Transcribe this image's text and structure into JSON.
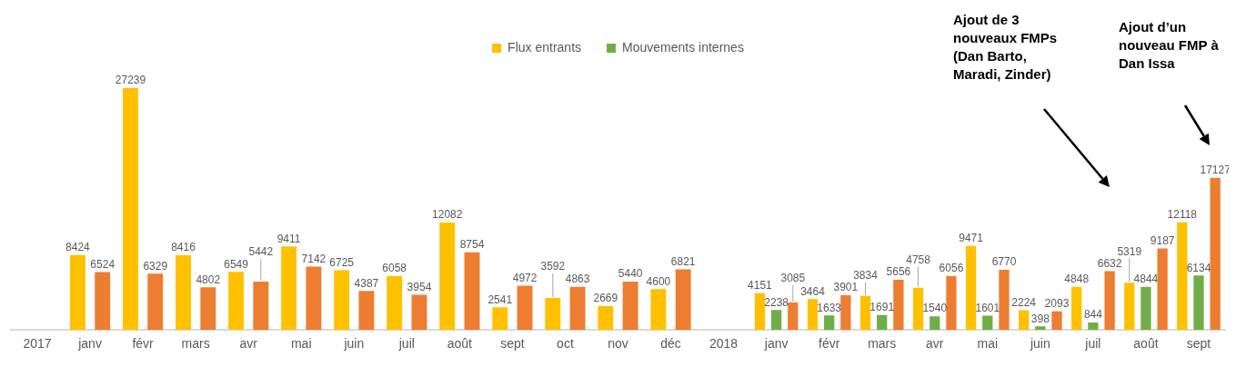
{
  "chart_data": {
    "type": "bar",
    "categories": [
      "2017",
      "janv",
      "févr",
      "mars",
      "avr",
      "mai",
      "juin",
      "juil",
      "août",
      "sept",
      "oct",
      "nov",
      "déc",
      "2018",
      "janv",
      "févr",
      "mars",
      "avr",
      "mai",
      "juin",
      "juil",
      "août",
      "sept"
    ],
    "series": [
      {
        "name": "Flux entrants",
        "color": "#ffc000",
        "values": [
          null,
          8424,
          27239,
          8416,
          6549,
          9411,
          6725,
          6058,
          12082,
          2541,
          3592,
          2669,
          4600,
          null,
          4151,
          3464,
          3834,
          4758,
          9471,
          2224,
          4848,
          5319,
          12118
        ]
      },
      {
        "name": "Mouvements internes",
        "color": "#70ad47",
        "values": [
          null,
          null,
          null,
          null,
          null,
          null,
          null,
          null,
          null,
          null,
          null,
          null,
          null,
          null,
          2238,
          1633,
          1691,
          1540,
          1601,
          398,
          844,
          4844,
          6134
        ]
      },
      {
        "color": "#ed7d31",
        "values": [
          null,
          6524,
          6329,
          4802,
          5442,
          7142,
          4387,
          3954,
          8754,
          4972,
          4863,
          5440,
          6821,
          null,
          3085,
          3901,
          5656,
          6056,
          6770,
          2093,
          6632,
          9187,
          17127
        ]
      }
    ],
    "tick_labels": "x",
    "grid": false,
    "legend": "top",
    "data_labels": true,
    "annotations": [
      "Ajout de 3 nouveaux FMPs (Dan Barto, Maradi, Zinder)",
      "Ajout d’un nouveau FMP à Dan Issa"
    ]
  }
}
